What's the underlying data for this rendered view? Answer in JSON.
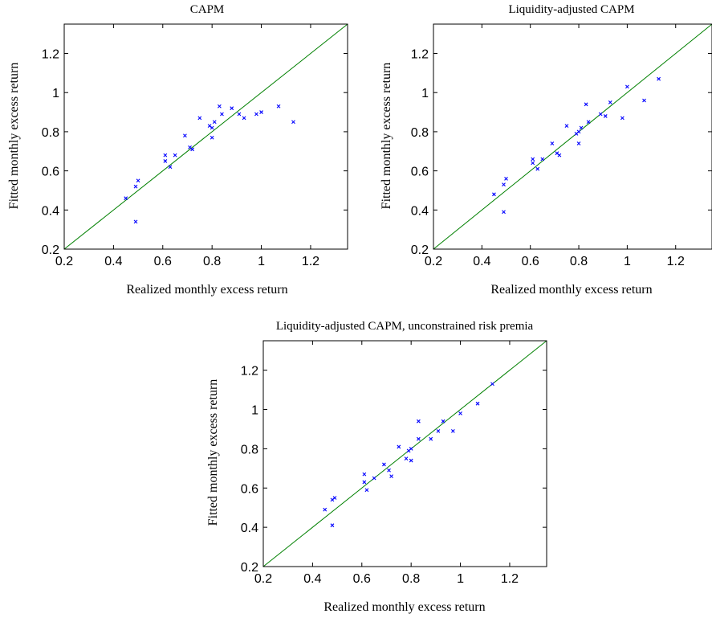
{
  "chart_data": [
    {
      "type": "scatter",
      "title": "CAPM",
      "xlabel": "Realized monthly excess return",
      "ylabel": "Fitted monthly excess return",
      "xlim": [
        0.2,
        1.35
      ],
      "ylim": [
        0.2,
        1.35
      ],
      "xticks": [
        "0.2",
        "0.4",
        "0.6",
        "0.8",
        "1",
        "1.2"
      ],
      "yticks": [
        "0.2",
        "0.4",
        "0.6",
        "0.8",
        "1",
        "1.2"
      ],
      "marker": "x",
      "marker_color": "#0000ff",
      "reference_line": {
        "type": "y=x",
        "color": "#008000"
      },
      "points": [
        {
          "x": 0.45,
          "y": 0.46
        },
        {
          "x": 0.49,
          "y": 0.52
        },
        {
          "x": 0.5,
          "y": 0.55
        },
        {
          "x": 0.49,
          "y": 0.34
        },
        {
          "x": 0.61,
          "y": 0.65
        },
        {
          "x": 0.61,
          "y": 0.68
        },
        {
          "x": 0.63,
          "y": 0.62
        },
        {
          "x": 0.65,
          "y": 0.68
        },
        {
          "x": 0.69,
          "y": 0.78
        },
        {
          "x": 0.71,
          "y": 0.72
        },
        {
          "x": 0.72,
          "y": 0.71
        },
        {
          "x": 0.75,
          "y": 0.87
        },
        {
          "x": 0.79,
          "y": 0.83
        },
        {
          "x": 0.8,
          "y": 0.82
        },
        {
          "x": 0.8,
          "y": 0.77
        },
        {
          "x": 0.81,
          "y": 0.85
        },
        {
          "x": 0.83,
          "y": 0.93
        },
        {
          "x": 0.84,
          "y": 0.89
        },
        {
          "x": 0.88,
          "y": 0.92
        },
        {
          "x": 0.91,
          "y": 0.89
        },
        {
          "x": 0.93,
          "y": 0.87
        },
        {
          "x": 0.98,
          "y": 0.89
        },
        {
          "x": 1.0,
          "y": 0.9
        },
        {
          "x": 1.07,
          "y": 0.93
        },
        {
          "x": 1.13,
          "y": 0.85
        }
      ]
    },
    {
      "type": "scatter",
      "title": "Liquidity-adjusted CAPM",
      "xlabel": "Realized monthly excess return",
      "ylabel": "Fitted monthly excess return",
      "xlim": [
        0.2,
        1.35
      ],
      "ylim": [
        0.2,
        1.35
      ],
      "xticks": [
        "0.2",
        "0.4",
        "0.6",
        "0.8",
        "1",
        "1.2"
      ],
      "yticks": [
        "0.2",
        "0.4",
        "0.6",
        "0.8",
        "1",
        "1.2"
      ],
      "marker": "x",
      "marker_color": "#0000ff",
      "reference_line": {
        "type": "y=x",
        "color": "#008000"
      },
      "points": [
        {
          "x": 0.45,
          "y": 0.48
        },
        {
          "x": 0.49,
          "y": 0.53
        },
        {
          "x": 0.5,
          "y": 0.56
        },
        {
          "x": 0.49,
          "y": 0.39
        },
        {
          "x": 0.61,
          "y": 0.64
        },
        {
          "x": 0.61,
          "y": 0.66
        },
        {
          "x": 0.63,
          "y": 0.61
        },
        {
          "x": 0.65,
          "y": 0.66
        },
        {
          "x": 0.69,
          "y": 0.74
        },
        {
          "x": 0.71,
          "y": 0.69
        },
        {
          "x": 0.72,
          "y": 0.68
        },
        {
          "x": 0.75,
          "y": 0.83
        },
        {
          "x": 0.79,
          "y": 0.79
        },
        {
          "x": 0.8,
          "y": 0.8
        },
        {
          "x": 0.8,
          "y": 0.74
        },
        {
          "x": 0.81,
          "y": 0.82
        },
        {
          "x": 0.83,
          "y": 0.94
        },
        {
          "x": 0.84,
          "y": 0.85
        },
        {
          "x": 0.89,
          "y": 0.89
        },
        {
          "x": 0.91,
          "y": 0.88
        },
        {
          "x": 0.93,
          "y": 0.95
        },
        {
          "x": 0.98,
          "y": 0.87
        },
        {
          "x": 1.0,
          "y": 1.03
        },
        {
          "x": 1.07,
          "y": 0.96
        },
        {
          "x": 1.13,
          "y": 1.07
        }
      ]
    },
    {
      "type": "scatter",
      "title": "Liquidity-adjusted CAPM, unconstrained risk premia",
      "xlabel": "Realized monthly excess return",
      "ylabel": "Fitted monthly excess return",
      "xlim": [
        0.2,
        1.35
      ],
      "ylim": [
        0.2,
        1.35
      ],
      "xticks": [
        "0.2",
        "0.4",
        "0.6",
        "0.8",
        "1",
        "1.2"
      ],
      "yticks": [
        "0.2",
        "0.4",
        "0.6",
        "0.8",
        "1",
        "1.2"
      ],
      "marker": "x",
      "marker_color": "#0000ff",
      "reference_line": {
        "type": "y=x",
        "color": "#008000"
      },
      "points": [
        {
          "x": 0.45,
          "y": 0.49
        },
        {
          "x": 0.48,
          "y": 0.54
        },
        {
          "x": 0.49,
          "y": 0.55
        },
        {
          "x": 0.48,
          "y": 0.41
        },
        {
          "x": 0.61,
          "y": 0.63
        },
        {
          "x": 0.61,
          "y": 0.67
        },
        {
          "x": 0.62,
          "y": 0.59
        },
        {
          "x": 0.65,
          "y": 0.65
        },
        {
          "x": 0.69,
          "y": 0.72
        },
        {
          "x": 0.71,
          "y": 0.69
        },
        {
          "x": 0.72,
          "y": 0.66
        },
        {
          "x": 0.75,
          "y": 0.81
        },
        {
          "x": 0.78,
          "y": 0.75
        },
        {
          "x": 0.79,
          "y": 0.79
        },
        {
          "x": 0.8,
          "y": 0.74
        },
        {
          "x": 0.8,
          "y": 0.8
        },
        {
          "x": 0.83,
          "y": 0.94
        },
        {
          "x": 0.83,
          "y": 0.85
        },
        {
          "x": 0.88,
          "y": 0.85
        },
        {
          "x": 0.91,
          "y": 0.89
        },
        {
          "x": 0.93,
          "y": 0.94
        },
        {
          "x": 0.97,
          "y": 0.89
        },
        {
          "x": 1.0,
          "y": 0.98
        },
        {
          "x": 1.07,
          "y": 1.03
        },
        {
          "x": 1.13,
          "y": 1.13
        }
      ]
    }
  ]
}
